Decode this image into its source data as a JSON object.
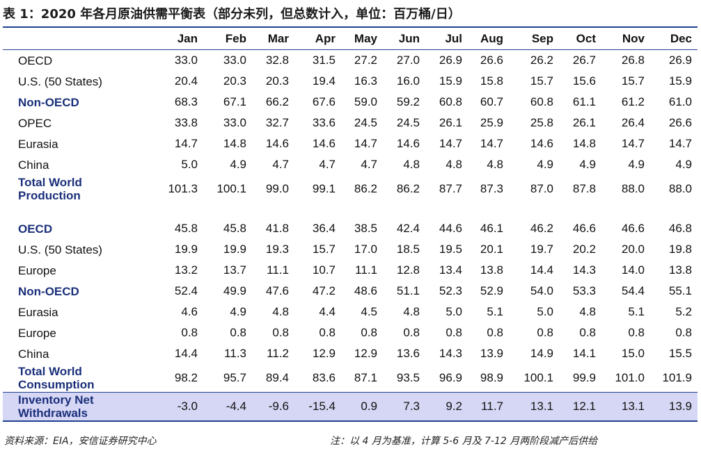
{
  "title": "表 1：2020 年各月原油供需平衡表（部分未列，但总数计入，单位：百万桶/日）",
  "months": [
    "Jan",
    "Feb",
    "Mar",
    "Apr",
    "May",
    "Jun",
    "Jul",
    "Aug",
    "Sep",
    "Oct",
    "Nov",
    "Dec"
  ],
  "supply_rows": [
    {
      "label": "OECD",
      "values": [
        "33.0",
        "33.0",
        "32.8",
        "31.5",
        "27.2",
        "27.0",
        "26.9",
        "26.6",
        "26.2",
        "26.7",
        "26.8",
        "26.9"
      ]
    },
    {
      "label": "U.S. (50 States)",
      "values": [
        "20.4",
        "20.3",
        "20.3",
        "19.4",
        "16.3",
        "16.0",
        "15.9",
        "15.8",
        "15.7",
        "15.6",
        "15.7",
        "15.9"
      ]
    },
    {
      "label": "Non-OECD",
      "values": [
        "68.3",
        "67.1",
        "66.2",
        "67.6",
        "59.0",
        "59.2",
        "60.8",
        "60.7",
        "60.8",
        "61.1",
        "61.2",
        "61.0"
      ]
    },
    {
      "label": "OPEC",
      "values": [
        "33.8",
        "33.0",
        "32.7",
        "33.6",
        "24.5",
        "24.5",
        "26.1",
        "25.9",
        "25.8",
        "26.1",
        "26.4",
        "26.6"
      ]
    },
    {
      "label": "Eurasia",
      "values": [
        "14.7",
        "14.8",
        "14.6",
        "14.6",
        "14.7",
        "14.6",
        "14.7",
        "14.7",
        "14.6",
        "14.8",
        "14.7",
        "14.7"
      ]
    },
    {
      "label": "China",
      "values": [
        "5.0",
        "4.9",
        "4.7",
        "4.7",
        "4.7",
        "4.8",
        "4.8",
        "4.8",
        "4.9",
        "4.9",
        "4.9",
        "4.9"
      ]
    }
  ],
  "total_production": {
    "label_line1": "Total World",
    "label_line2": "Production",
    "values": [
      "101.3",
      "100.1",
      "99.0",
      "99.1",
      "86.2",
      "86.2",
      "87.7",
      "87.3",
      "87.0",
      "87.8",
      "88.0",
      "88.0"
    ]
  },
  "demand_rows": [
    {
      "label": "OECD",
      "values": [
        "45.8",
        "45.8",
        "41.8",
        "36.4",
        "38.5",
        "42.4",
        "44.6",
        "46.1",
        "46.2",
        "46.6",
        "46.6",
        "46.8"
      ]
    },
    {
      "label": "U.S. (50 States)",
      "values": [
        "19.9",
        "19.9",
        "19.3",
        "15.7",
        "17.0",
        "18.5",
        "19.5",
        "20.1",
        "19.7",
        "20.2",
        "20.0",
        "19.8"
      ]
    },
    {
      "label": "Europe",
      "values": [
        "13.2",
        "13.7",
        "11.1",
        "10.7",
        "11.1",
        "12.8",
        "13.4",
        "13.8",
        "14.4",
        "14.3",
        "14.0",
        "13.8"
      ]
    },
    {
      "label": "Non-OECD",
      "values": [
        "52.4",
        "49.9",
        "47.6",
        "47.2",
        "48.6",
        "51.1",
        "52.3",
        "52.9",
        "54.0",
        "53.3",
        "54.4",
        "55.1"
      ]
    },
    {
      "label": "Eurasia",
      "values": [
        "4.6",
        "4.9",
        "4.8",
        "4.4",
        "4.5",
        "4.8",
        "5.0",
        "5.1",
        "5.0",
        "4.8",
        "5.1",
        "5.2"
      ]
    },
    {
      "label": "Europe",
      "values": [
        "0.8",
        "0.8",
        "0.8",
        "0.8",
        "0.8",
        "0.8",
        "0.8",
        "0.8",
        "0.8",
        "0.8",
        "0.8",
        "0.8"
      ]
    },
    {
      "label": "China",
      "values": [
        "14.4",
        "11.3",
        "11.2",
        "12.9",
        "12.9",
        "13.6",
        "14.3",
        "13.9",
        "14.9",
        "14.1",
        "15.0",
        "15.5"
      ]
    }
  ],
  "total_consumption": {
    "label_line1": "Total World",
    "label_line2": "Consumption",
    "values": [
      "98.2",
      "95.7",
      "89.4",
      "83.6",
      "87.1",
      "93.5",
      "96.9",
      "98.9",
      "100.1",
      "99.9",
      "101.0",
      "101.9"
    ]
  },
  "inventory": {
    "label_line1": "Inventory Net",
    "label_line2": "Withdrawals",
    "values": [
      "-3.0",
      "-4.4",
      "-9.6",
      "-15.4",
      "0.9",
      "7.3",
      "9.2",
      "11.7",
      "13.1",
      "12.1",
      "13.1",
      "13.9"
    ]
  },
  "footer": {
    "source": "资料来源：EIA，安信证券研究中心",
    "note": "注：以 4 月为基准，计算 5-6 月及 7-12 月两阶段减产后供给"
  },
  "colors": {
    "rule": "#1f3f8f",
    "bold_label": "#1a2f7a",
    "highlight": "#d6d6f5"
  }
}
